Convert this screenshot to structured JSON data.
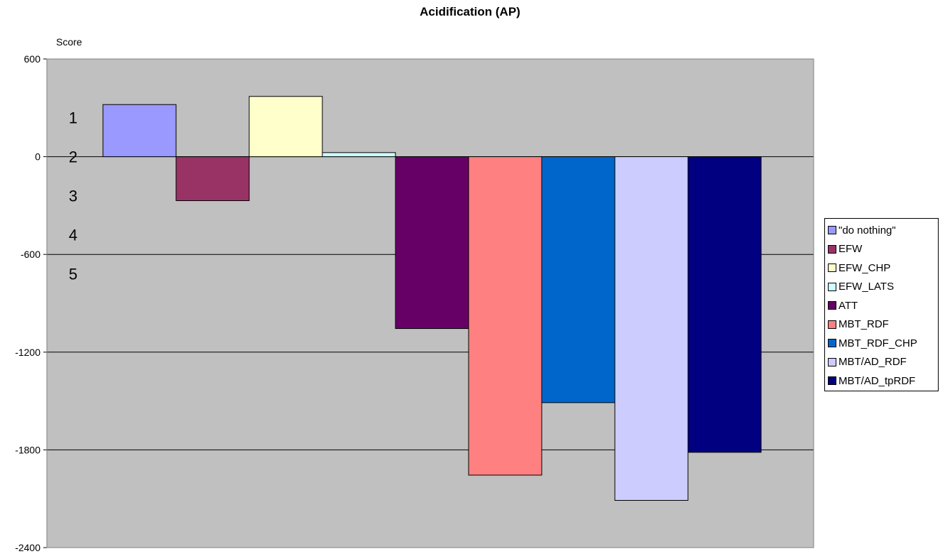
{
  "chart_data": {
    "type": "bar",
    "title": "Acidification (AP)",
    "ylabel": "Score",
    "xlabel": "",
    "ylim": [
      -2400,
      600
    ],
    "yticks": [
      "600",
      "0",
      "-600",
      "-1200",
      "-1800",
      "-2400"
    ],
    "grid": true,
    "legend_position": "right",
    "plot_background": "#c0c0c0",
    "rank_labels": [
      "1",
      "2",
      "3",
      "4",
      "5"
    ],
    "series": [
      {
        "name": "\"do nothing\"",
        "value": 320,
        "color": "#9999ff"
      },
      {
        "name": "EFW",
        "value": -270,
        "color": "#993366"
      },
      {
        "name": "EFW_CHP",
        "value": 370,
        "color": "#ffffcc"
      },
      {
        "name": "EFW_LATS",
        "value": 25,
        "color": "#ccffff"
      },
      {
        "name": "ATT",
        "value": -1055,
        "color": "#660066"
      },
      {
        "name": "MBT_RDF",
        "value": -1955,
        "color": "#ff8080"
      },
      {
        "name": "MBT_RDF_CHP",
        "value": -1510,
        "color": "#0066cc"
      },
      {
        "name": "MBT/AD_RDF",
        "value": -2110,
        "color": "#ccccff"
      },
      {
        "name": "MBT/AD_tpRDF",
        "value": -1815,
        "color": "#000080"
      }
    ]
  }
}
